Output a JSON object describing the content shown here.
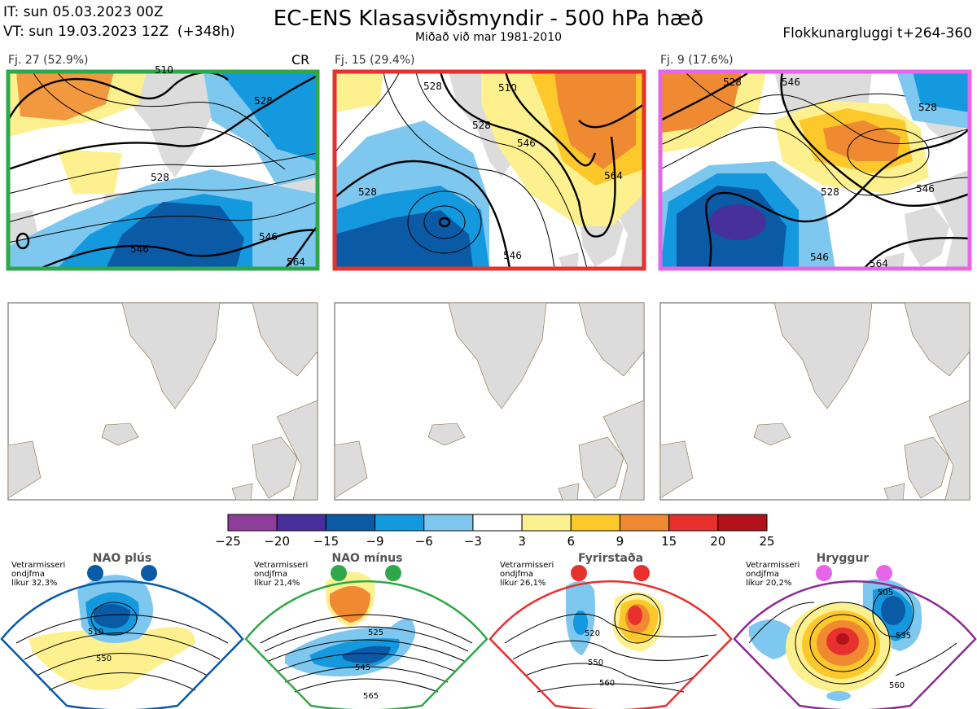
{
  "header": {
    "it_line": "IT: sun 05.03.2023 00Z",
    "vt_line": "VT: sun 19.03.2023 12Z  (+348h)",
    "title": "EC-ENS Klasasviðsmyndir - 500 hPa hæð",
    "subtitle": "Miðað við mar 1981-2010",
    "window": "Flokkunargluggi t+264-360"
  },
  "clusters": [
    {
      "label": "Fj. 27 (52.9%)",
      "tag": "CR",
      "border_color": "#2ea84a",
      "members": 27,
      "percent": 52.9,
      "contour_labels": [
        "510",
        "528",
        "528",
        "546",
        "546",
        "564"
      ]
    },
    {
      "label": "Fj. 15 (29.4%)",
      "tag": "",
      "border_color": "#e8302e",
      "members": 15,
      "percent": 29.4,
      "contour_labels": [
        "528",
        "510",
        "528",
        "546",
        "564",
        "546",
        "528"
      ]
    },
    {
      "label": "Fj. 9 (17.6%)",
      "tag": "",
      "border_color": "#e765e8",
      "members": 9,
      "percent": 17.6,
      "contour_labels": [
        "528",
        "546",
        "528",
        "546",
        "528",
        "546",
        "564"
      ]
    }
  ],
  "colorbar": {
    "ticks": [
      "−25",
      "−20",
      "−15",
      "−9",
      "−6",
      "−3",
      "3",
      "6",
      "9",
      "15",
      "20",
      "25"
    ],
    "colors": [
      "#8e3d9a",
      "#47309b",
      "#0a5aa6",
      "#1498de",
      "#7ec8ef",
      "#ffffff",
      "#fdf08f",
      "#fcc82a",
      "#f08a32",
      "#e8302e",
      "#b3121b"
    ]
  },
  "regimes": [
    {
      "name": "NAO plús",
      "color": "#0a5aa6",
      "season": "Vetrarmisseri",
      "months": "ondjfma",
      "prob": "líkur 32,3%",
      "labels": [
        "510",
        "550"
      ]
    },
    {
      "name": "NAO mínus",
      "color": "#2ea84a",
      "season": "Vetrarmisseri",
      "months": "ondjfma",
      "prob": "líkur 21,4%",
      "labels": [
        "525",
        "545",
        "565"
      ]
    },
    {
      "name": "Fyrirstaða",
      "color": "#e8302e",
      "season": "Vetrarmisseri",
      "months": "ondjfma",
      "prob": "líkur 26,1%",
      "labels": [
        "520",
        "550",
        "560"
      ]
    },
    {
      "name": "Hryggur",
      "color": "#8c2b94",
      "season": "Vetrarmisseri",
      "months": "ondjfma",
      "prob": "líkur 20,2%",
      "labels": [
        "505",
        "535",
        "560"
      ]
    }
  ],
  "chart_data": {
    "type": "heatmap",
    "title": "EC-ENS Klasasviðsmyndir - 500 hPa hæð",
    "subtitle": "Miðað við mar 1981-2010",
    "series": [
      {
        "name": "Fj. 27",
        "values": [
          52.9
        ]
      },
      {
        "name": "Fj. 15",
        "values": [
          29.4
        ]
      },
      {
        "name": "Fj. 9",
        "values": [
          17.6
        ]
      }
    ],
    "colorbar_ticks": [
      -25,
      -20,
      -15,
      -9,
      -6,
      -3,
      3,
      6,
      9,
      15,
      20,
      25
    ],
    "regime_probabilities": [
      {
        "name": "NAO plús",
        "value": 32.3
      },
      {
        "name": "NAO mínus",
        "value": 21.4
      },
      {
        "name": "Fyrirstaða",
        "value": 26.1
      },
      {
        "name": "Hryggur",
        "value": 20.2
      }
    ]
  }
}
